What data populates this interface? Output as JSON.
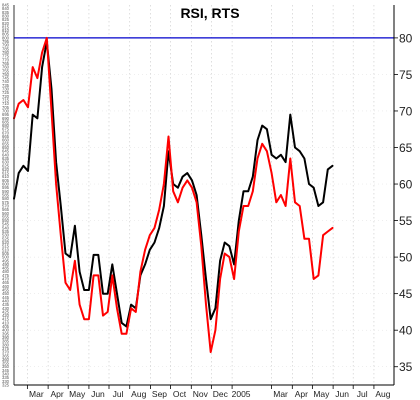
{
  "chart_data": {
    "type": "line",
    "title": "RSI, RTS",
    "xlabel": "",
    "ylabel": "",
    "ylim": [
      32.5,
      84.5
    ],
    "yticks": [
      35,
      40,
      45,
      50,
      55,
      60,
      65,
      70,
      75,
      80
    ],
    "xaxis": {
      "start": "2004-02-10",
      "end": "2005-08-31",
      "ticks": [
        {
          "label": "Mar",
          "date": "2004-03-01"
        },
        {
          "label": "Apr",
          "date": "2004-04-01"
        },
        {
          "label": "May",
          "date": "2004-05-01"
        },
        {
          "label": "Jun",
          "date": "2004-06-01"
        },
        {
          "label": "Jul",
          "date": "2004-07-01"
        },
        {
          "label": "Aug",
          "date": "2004-08-01"
        },
        {
          "label": "Sep",
          "date": "2004-09-01"
        },
        {
          "label": "Oct",
          "date": "2004-10-01"
        },
        {
          "label": "Nov",
          "date": "2004-11-01"
        },
        {
          "label": "Dec",
          "date": "2004-12-01"
        },
        {
          "label": "2005",
          "date": "2005-01-01"
        },
        {
          "label": "Mar",
          "date": "2005-03-01"
        },
        {
          "label": "Apr",
          "date": "2005-04-01"
        },
        {
          "label": "May",
          "date": "2005-05-01"
        },
        {
          "label": "Jun",
          "date": "2005-06-01"
        },
        {
          "label": "Jul",
          "date": "2005-07-01"
        },
        {
          "label": "Aug",
          "date": "2005-08-01"
        }
      ]
    },
    "reference_lines": [
      {
        "y": 80,
        "color": "#0000cc"
      }
    ],
    "grid": true,
    "series": [
      {
        "color": "#000000",
        "points": [
          [
            "2004-02-10",
            58.0
          ],
          [
            "2004-02-17",
            61.5
          ],
          [
            "2004-02-24",
            62.5
          ],
          [
            "2004-03-02",
            61.8
          ],
          [
            "2004-03-09",
            69.5
          ],
          [
            "2004-03-16",
            69.0
          ],
          [
            "2004-03-23",
            76.0
          ],
          [
            "2004-03-30",
            79.5
          ],
          [
            "2004-04-06",
            73.0
          ],
          [
            "2004-04-13",
            63.0
          ],
          [
            "2004-04-20",
            57.0
          ],
          [
            "2004-04-27",
            50.5
          ],
          [
            "2004-05-04",
            50.0
          ],
          [
            "2004-05-11",
            54.3
          ],
          [
            "2004-05-18",
            48.0
          ],
          [
            "2004-05-25",
            45.5
          ],
          [
            "2004-06-01",
            45.5
          ],
          [
            "2004-06-08",
            50.3
          ],
          [
            "2004-06-15",
            50.3
          ],
          [
            "2004-06-22",
            45.0
          ],
          [
            "2004-06-29",
            45.0
          ],
          [
            "2004-07-06",
            49.0
          ],
          [
            "2004-07-13",
            45.0
          ],
          [
            "2004-07-20",
            41.0
          ],
          [
            "2004-07-27",
            40.5
          ],
          [
            "2004-08-03",
            43.5
          ],
          [
            "2004-08-10",
            43.0
          ],
          [
            "2004-08-17",
            47.5
          ],
          [
            "2004-08-24",
            49.0
          ],
          [
            "2004-08-31",
            51.0
          ],
          [
            "2004-09-07",
            52.0
          ],
          [
            "2004-09-14",
            54.0
          ],
          [
            "2004-09-21",
            57.0
          ],
          [
            "2004-09-28",
            64.5
          ],
          [
            "2004-10-05",
            60.0
          ],
          [
            "2004-10-12",
            59.5
          ],
          [
            "2004-10-19",
            61.0
          ],
          [
            "2004-10-26",
            61.5
          ],
          [
            "2004-11-02",
            60.5
          ],
          [
            "2004-11-09",
            58.5
          ],
          [
            "2004-11-16",
            53.0
          ],
          [
            "2004-11-23",
            47.0
          ],
          [
            "2004-11-30",
            41.5
          ],
          [
            "2004-12-07",
            43.0
          ],
          [
            "2004-12-14",
            49.5
          ],
          [
            "2004-12-21",
            52.0
          ],
          [
            "2004-12-28",
            51.5
          ],
          [
            "2005-01-04",
            49.0
          ],
          [
            "2005-01-11",
            55.0
          ],
          [
            "2005-01-18",
            59.0
          ],
          [
            "2005-01-25",
            59.0
          ],
          [
            "2005-02-01",
            61.0
          ],
          [
            "2005-02-08",
            66.0
          ],
          [
            "2005-02-15",
            68.0
          ],
          [
            "2005-02-22",
            67.5
          ],
          [
            "2005-03-01",
            64.0
          ],
          [
            "2005-03-08",
            63.5
          ],
          [
            "2005-03-15",
            64.0
          ],
          [
            "2005-03-22",
            63.0
          ],
          [
            "2005-03-29",
            69.5
          ],
          [
            "2005-04-05",
            65.0
          ],
          [
            "2005-04-12",
            64.5
          ],
          [
            "2005-04-19",
            63.5
          ],
          [
            "2005-04-26",
            60.0
          ],
          [
            "2005-05-03",
            59.5
          ],
          [
            "2005-05-10",
            57.0
          ],
          [
            "2005-05-17",
            57.5
          ],
          [
            "2005-05-24",
            62.0
          ],
          [
            "2005-05-31",
            62.5
          ]
        ]
      },
      {
        "color": "#ff0000",
        "points": [
          [
            "2004-02-10",
            69.0
          ],
          [
            "2004-02-17",
            71.0
          ],
          [
            "2004-02-24",
            71.5
          ],
          [
            "2004-03-02",
            70.5
          ],
          [
            "2004-03-09",
            76.0
          ],
          [
            "2004-03-16",
            74.5
          ],
          [
            "2004-03-23",
            78.0
          ],
          [
            "2004-03-30",
            80.0
          ],
          [
            "2004-04-06",
            70.0
          ],
          [
            "2004-04-13",
            60.0
          ],
          [
            "2004-04-20",
            53.0
          ],
          [
            "2004-04-27",
            46.5
          ],
          [
            "2004-05-04",
            45.5
          ],
          [
            "2004-05-11",
            49.5
          ],
          [
            "2004-05-18",
            43.5
          ],
          [
            "2004-05-25",
            41.5
          ],
          [
            "2004-06-01",
            41.5
          ],
          [
            "2004-06-08",
            47.5
          ],
          [
            "2004-06-15",
            47.5
          ],
          [
            "2004-06-22",
            42.0
          ],
          [
            "2004-06-29",
            42.5
          ],
          [
            "2004-07-06",
            47.5
          ],
          [
            "2004-07-13",
            43.0
          ],
          [
            "2004-07-20",
            39.5
          ],
          [
            "2004-07-27",
            39.5
          ],
          [
            "2004-08-03",
            43.0
          ],
          [
            "2004-08-10",
            42.5
          ],
          [
            "2004-08-17",
            48.0
          ],
          [
            "2004-08-24",
            51.0
          ],
          [
            "2004-08-31",
            53.0
          ],
          [
            "2004-09-07",
            54.0
          ],
          [
            "2004-09-14",
            56.5
          ],
          [
            "2004-09-21",
            60.0
          ],
          [
            "2004-09-28",
            66.5
          ],
          [
            "2004-10-05",
            59.0
          ],
          [
            "2004-10-12",
            57.5
          ],
          [
            "2004-10-19",
            59.5
          ],
          [
            "2004-10-26",
            60.5
          ],
          [
            "2004-11-02",
            59.5
          ],
          [
            "2004-11-09",
            57.5
          ],
          [
            "2004-11-16",
            51.5
          ],
          [
            "2004-11-23",
            43.5
          ],
          [
            "2004-11-30",
            37.0
          ],
          [
            "2004-12-07",
            40.0
          ],
          [
            "2004-12-14",
            47.0
          ],
          [
            "2004-12-21",
            50.5
          ],
          [
            "2004-12-28",
            50.0
          ],
          [
            "2005-01-04",
            47.0
          ],
          [
            "2005-01-11",
            53.5
          ],
          [
            "2005-01-18",
            57.0
          ],
          [
            "2005-01-25",
            57.0
          ],
          [
            "2005-02-01",
            59.0
          ],
          [
            "2005-02-08",
            63.5
          ],
          [
            "2005-02-15",
            65.5
          ],
          [
            "2005-02-22",
            64.5
          ],
          [
            "2005-03-01",
            61.5
          ],
          [
            "2005-03-08",
            57.5
          ],
          [
            "2005-03-15",
            58.5
          ],
          [
            "2005-03-22",
            57.0
          ],
          [
            "2005-03-29",
            63.5
          ],
          [
            "2005-04-05",
            57.5
          ],
          [
            "2005-04-12",
            57.0
          ],
          [
            "2005-04-19",
            52.5
          ],
          [
            "2005-04-26",
            52.5
          ],
          [
            "2005-05-03",
            47.0
          ],
          [
            "2005-05-10",
            47.5
          ],
          [
            "2005-05-17",
            53.0
          ],
          [
            "2005-05-24",
            53.5
          ],
          [
            "2005-05-31",
            54.0
          ]
        ]
      }
    ]
  }
}
